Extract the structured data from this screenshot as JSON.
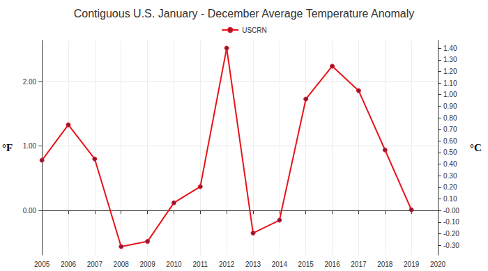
{
  "chart_data": {
    "type": "line",
    "title": "Contiguous U.S. January - December Average Temperature Anomaly",
    "ylabel": "°F",
    "y2label": "°C",
    "x": [
      2005,
      2006,
      2007,
      2008,
      2009,
      2010,
      2011,
      2012,
      2013,
      2014,
      2015,
      2016,
      2017,
      2018,
      2019,
      2020
    ],
    "series": [
      {
        "name": "USCRN",
        "color": "#e8141b",
        "marker": "circle",
        "line_style": "solid",
        "values": [
          0.78,
          1.33,
          0.8,
          -0.56,
          -0.48,
          0.12,
          0.37,
          2.52,
          -0.35,
          -0.15,
          1.73,
          2.24,
          1.86,
          0.94,
          0.01,
          null
        ]
      }
    ],
    "xlim": [
      2005,
      2020
    ],
    "xticks": [
      2005,
      2006,
      2007,
      2008,
      2009,
      2010,
      2011,
      2012,
      2013,
      2014,
      2015,
      2016,
      2017,
      2018,
      2019,
      2020
    ],
    "ylim": [
      -0.69,
      2.64
    ],
    "yticks": [
      {
        "value": 0,
        "label": "0.00"
      },
      {
        "value": 1,
        "label": "1.00"
      },
      {
        "value": 2,
        "label": "2.00"
      }
    ],
    "y2lim": [
      -0.383,
      1.467
    ],
    "y2ticks": [
      {
        "value": -0.3,
        "label": "-0.30"
      },
      {
        "value": -0.2,
        "label": "-0.20"
      },
      {
        "value": -0.1,
        "label": "-0.10"
      },
      {
        "value": 0,
        "label": "-0.00"
      },
      {
        "value": 0.1,
        "label": "0.10"
      },
      {
        "value": 0.2,
        "label": "0.20"
      },
      {
        "value": 0.3,
        "label": "0.30"
      },
      {
        "value": 0.4,
        "label": "0.40"
      },
      {
        "value": 0.5,
        "label": "0.50"
      },
      {
        "value": 0.6,
        "label": "0.60"
      },
      {
        "value": 0.7,
        "label": "0.70"
      },
      {
        "value": 0.8,
        "label": "0.80"
      },
      {
        "value": 0.9,
        "label": "0.90"
      },
      {
        "value": 1.0,
        "label": "1.00"
      },
      {
        "value": 1.1,
        "label": "1.10"
      },
      {
        "value": 1.2,
        "label": "1.20"
      },
      {
        "value": 1.3,
        "label": "1.30"
      },
      {
        "value": 1.4,
        "label": "1.40"
      }
    ],
    "grid": true,
    "legend": "top"
  }
}
